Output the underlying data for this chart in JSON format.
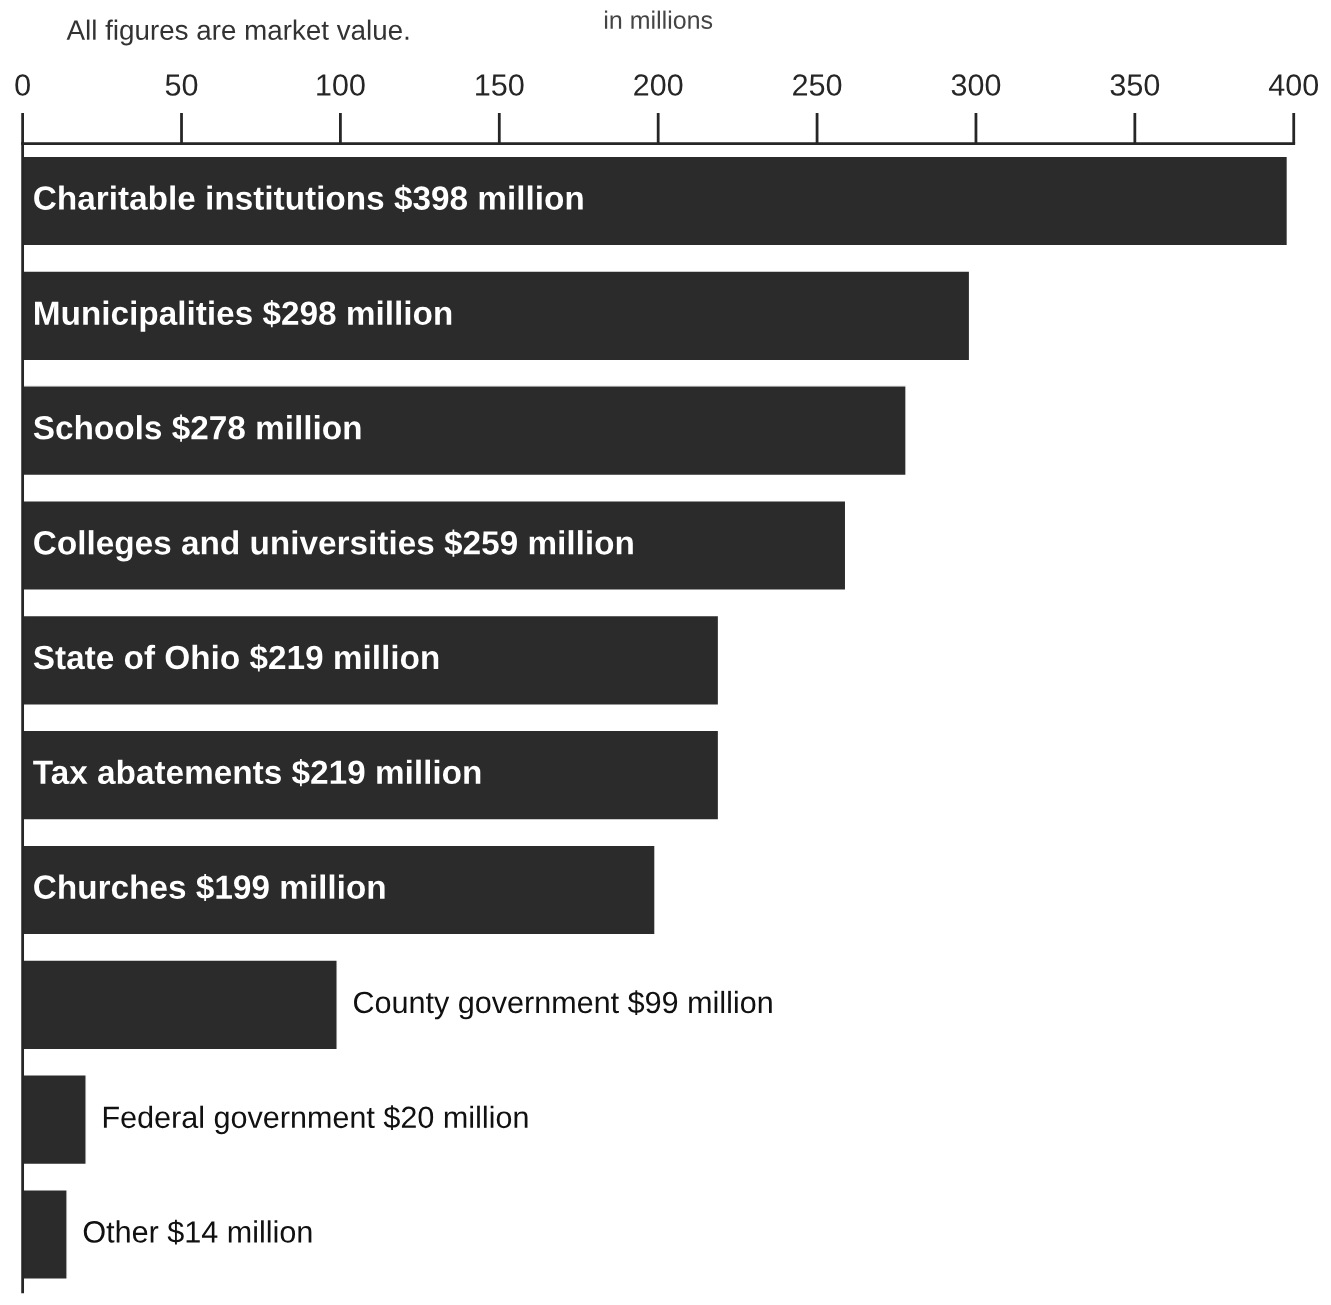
{
  "chart_data": {
    "type": "bar",
    "orientation": "horizontal",
    "subtitle": "All figures are market value.",
    "xlabel": "in millions",
    "categories": [
      null,
      null,
      null,
      null,
      null,
      null,
      null,
      null,
      null,
      null
    ],
    "values": [
      398,
      298,
      278,
      259,
      219,
      219,
      199,
      99,
      20,
      14
    ],
    "value_labels": [
      "Charitable institutions $398 million",
      "Municipalities $298 million",
      "Schools $278 million",
      "Colleges and universities $259 million",
      "State of Ohio $219 million",
      "Tax abatements $219 million",
      "Churches $199 million",
      "County government $99 million",
      "Federal government $20 million",
      "Other $14 million"
    ],
    "color": "#2b2b2b",
    "xlim": [
      0,
      400
    ],
    "xticks": [
      0,
      50,
      100,
      150,
      200,
      250,
      300,
      350,
      400
    ],
    "grid": false,
    "legend": false
  }
}
